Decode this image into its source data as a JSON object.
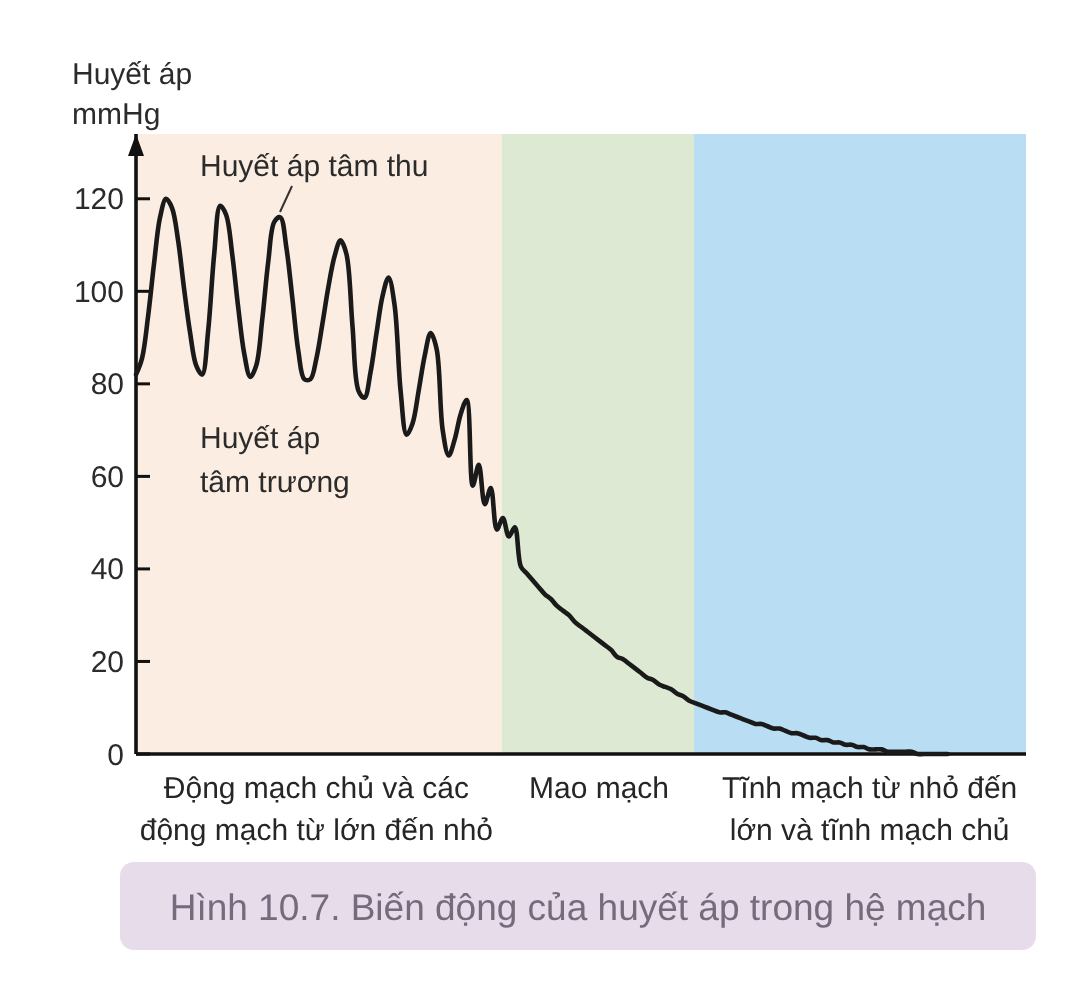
{
  "chart_data": {
    "type": "line",
    "title": "Hình 10.7. Biến động của huyết áp trong hệ mạch",
    "ylabel": "Huyết áp\nmmHg",
    "categories": [
      null,
      null,
      null,
      null,
      null,
      null,
      null,
      null,
      null,
      null,
      null,
      null,
      null,
      null,
      null,
      null,
      null,
      null,
      null,
      null,
      null,
      null,
      null,
      null,
      null,
      null,
      null,
      null,
      null,
      null,
      "Động mạch chủ và các\nđộng mạch từ lớn đến nhỏ",
      null,
      null,
      null,
      null,
      null,
      null,
      null,
      null,
      null,
      null,
      null,
      null,
      null,
      null,
      null,
      null,
      null,
      null,
      null,
      null,
      null,
      null,
      null,
      null,
      null,
      null,
      null,
      null,
      null,
      null,
      null,
      null,
      null,
      null,
      null,
      null,
      null,
      null,
      null,
      null,
      null,
      null,
      null,
      null,
      null,
      null,
      "Mao mạch",
      null,
      null,
      null,
      null,
      null,
      null,
      null,
      null,
      null,
      null,
      null,
      null,
      null,
      null,
      null,
      null,
      null,
      null,
      null,
      null,
      null,
      null,
      null,
      null,
      null,
      null,
      null,
      null,
      null,
      null,
      null,
      null,
      null,
      null,
      null,
      null,
      null,
      null,
      null,
      null,
      null,
      null,
      null,
      null,
      "Tĩnh mạch từ nhỏ đến\nlớn và tĩnh mạch chủ",
      null,
      null,
      null,
      null,
      null,
      null,
      null,
      null,
      null,
      null,
      null,
      null,
      null,
      null,
      null,
      null,
      null,
      null,
      null,
      null,
      null,
      null,
      null,
      null,
      null,
      null
    ],
    "values": [
      82,
      85.5,
      94.5,
      106,
      116,
      120,
      118,
      111,
      100.5,
      91,
      84,
      82,
      91.5,
      108,
      118.5,
      116.5,
      108,
      96.5,
      86.5,
      81.5,
      84,
      94,
      106.5,
      115,
      116,
      109.5,
      98.5,
      87,
      81,
      81,
      85.5,
      93,
      101,
      107.5,
      111,
      108,
      92.5,
      78.5,
      77,
      82.5,
      91,
      99,
      103,
      97,
      78.5,
      69,
      71.5,
      78.5,
      86,
      91,
      87.5,
      70,
      64.5,
      68,
      73.5,
      76.5,
      58,
      62.5,
      54,
      57.5,
      48.5,
      51,
      47,
      49,
      40.5,
      39,
      37.5,
      36,
      34.5,
      33.5,
      32,
      31,
      30,
      28.5,
      27.5,
      26.5,
      25.5,
      24.5,
      23.5,
      22.5,
      21,
      20.5,
      19.5,
      18.5,
      17.5,
      16.5,
      16,
      15,
      14.5,
      14,
      13,
      12.5,
      11.5,
      11,
      10.5,
      10,
      9.5,
      9,
      9,
      8.5,
      8,
      7.5,
      7,
      6.5,
      6.5,
      6,
      5.5,
      5.5,
      5,
      4.5,
      4.5,
      4,
      3.5,
      3.5,
      3,
      3,
      2.5,
      2.5,
      2,
      2,
      1.5,
      1.5,
      1,
      1,
      1,
      0.5,
      0.5,
      0.5,
      0.5,
      0.5,
      0,
      0,
      0,
      0,
      0,
      0,
      null,
      null,
      null,
      null,
      null,
      null,
      null,
      null,
      null,
      null,
      null,
      null,
      null
    ],
    "color": "#1a1a1a",
    "ylim": [
      0,
      134
    ],
    "yticks": [
      0,
      20,
      40,
      60,
      80,
      100,
      120
    ],
    "annotations": [
      "Huyết áp tâm thu",
      "Huyết áp\ntâm trương"
    ]
  }
}
